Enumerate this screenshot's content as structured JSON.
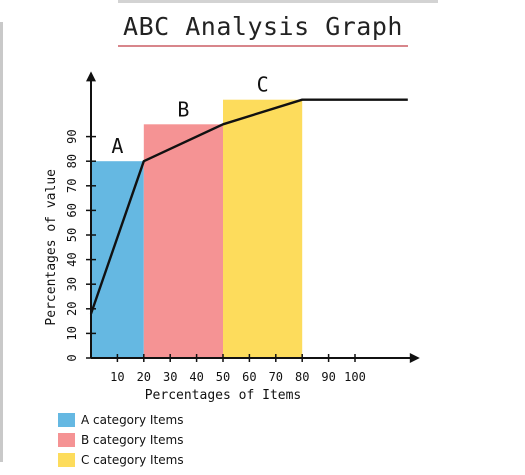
{
  "chart_data": {
    "type": "bar",
    "title": "ABC Analysis Graph",
    "xlabel": "Percentages of Items",
    "ylabel": "Percentages of value",
    "xlim": [
      0,
      120
    ],
    "ylim": [
      0,
      110
    ],
    "xticks": [
      10,
      20,
      30,
      40,
      50,
      60,
      70,
      80,
      90,
      100
    ],
    "yticks": [
      0,
      10,
      20,
      30,
      40,
      50,
      60,
      70,
      80,
      90
    ],
    "bars": [
      {
        "label": "A",
        "x_start": 0,
        "x_end": 20,
        "value": 80,
        "color": "#65b8e2"
      },
      {
        "label": "B",
        "x_start": 20,
        "x_end": 50,
        "value": 95,
        "color": "#f59394"
      },
      {
        "label": "C",
        "x_start": 50,
        "x_end": 80,
        "value": 105,
        "color": "#fddc5c"
      }
    ],
    "series": [
      {
        "x": [
          0,
          20,
          50,
          80,
          120
        ],
        "values": [
          18,
          80,
          95,
          105,
          105
        ],
        "color": "#111111"
      }
    ],
    "legend": [
      {
        "label": "A category Items",
        "color": "#65b8e2"
      },
      {
        "label": "B category Items",
        "color": "#f59394"
      },
      {
        "label": "C category Items",
        "color": "#fddc5c"
      }
    ],
    "legend_position": "bottom-left",
    "grid": false
  }
}
